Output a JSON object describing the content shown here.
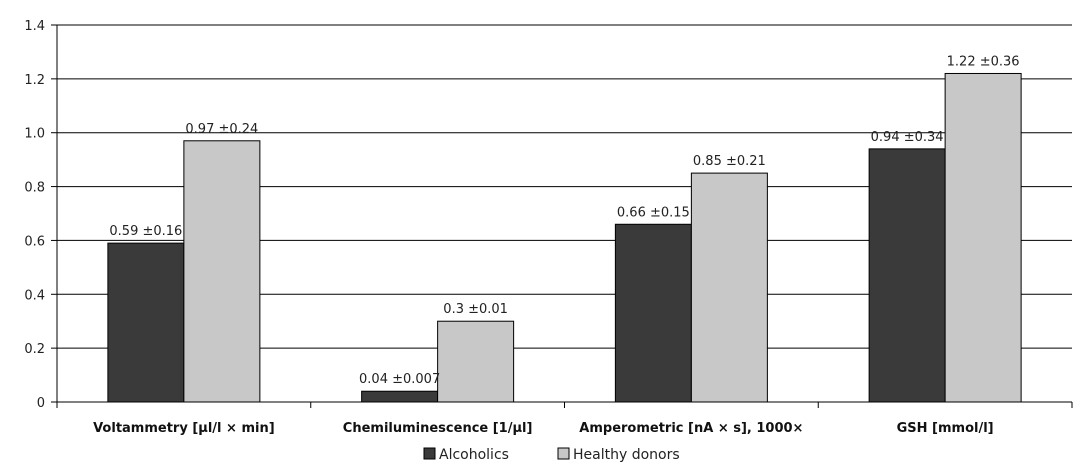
{
  "chart_data": {
    "type": "bar",
    "categories": [
      "Voltammetry [µl/l × min]",
      "Chemiluminescence [1/µl]",
      "Amperometric [nA × s], 1000×",
      "GSH [mmol/l]"
    ],
    "series": [
      {
        "name": "Alcoholics",
        "color": "#3a3a3a",
        "values": [
          0.59,
          0.04,
          0.66,
          0.94
        ],
        "labels": [
          "0.59 ±0.16",
          "0.04 ±0.007",
          "0.66 ±0.15",
          "0.94 ±0.34"
        ]
      },
      {
        "name": "Healthy donors",
        "color": "#c8c8c8",
        "values": [
          0.97,
          0.3,
          0.85,
          1.22
        ],
        "labels": [
          "0.97 ±0.24",
          "0.3 ±0.01",
          "0.85 ±0.21",
          "1.22 ±0.36"
        ]
      }
    ],
    "yticks": [
      "0",
      "0.2",
      "0.4",
      "0.6",
      "0.8",
      "1.0",
      "1.2",
      "1.4"
    ],
    "ylim": [
      0,
      1.4
    ],
    "grid": true,
    "legend": "bottom-center"
  }
}
